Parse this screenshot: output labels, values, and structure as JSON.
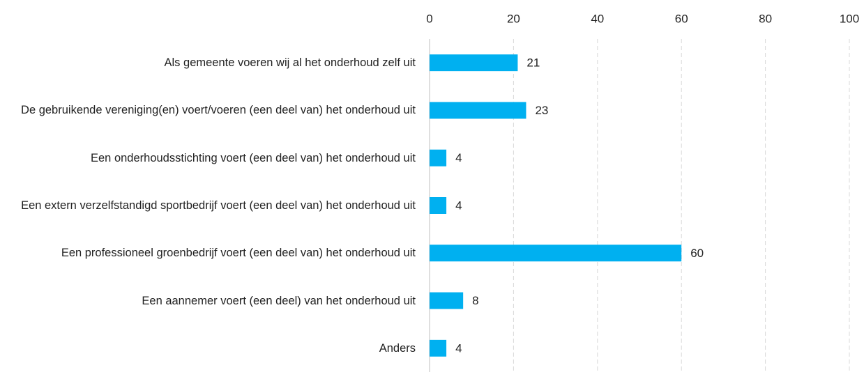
{
  "chart_data": {
    "type": "bar",
    "orientation": "horizontal",
    "categories": [
      "Als gemeente voeren wij al het onderhoud zelf uit",
      "De gebruikende vereniging(en) voert/voeren (een deel van) het onderhoud uit",
      "Een onderhoudsstichting voert (een deel van) het onderhoud uit",
      "Een extern verzelfstandigd sportbedrijf voert (een deel van) het onderhoud uit",
      "Een professioneel groenbedrijf voert (een deel van) het onderhoud uit",
      "Een aannemer voert (een deel) van het onderhoud uit",
      "Anders"
    ],
    "values": [
      21,
      23,
      4,
      4,
      60,
      8,
      4
    ],
    "color": "#00b0f0",
    "xlim": [
      0,
      100
    ],
    "xticks": [
      0,
      20,
      40,
      60,
      80,
      100
    ],
    "grid": true
  }
}
